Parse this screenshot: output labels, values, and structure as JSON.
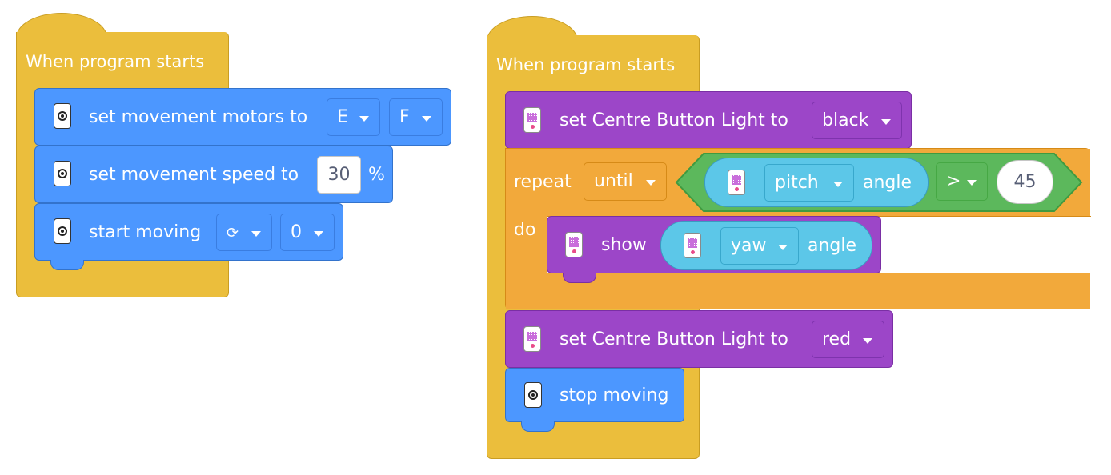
{
  "left_script": {
    "hat_label": "When program starts",
    "set_motors": {
      "label": "set movement motors to",
      "port1": "E",
      "port2": "F"
    },
    "set_speed": {
      "label": "set movement speed to",
      "value": "30",
      "unit": "%"
    },
    "start_moving": {
      "label": "start moving",
      "direction": "⟳",
      "steering": "0"
    }
  },
  "right_script": {
    "hat_label": "When program starts",
    "set_light_1": {
      "label": "set Centre Button Light to",
      "color": "black"
    },
    "repeat": {
      "label": "repeat",
      "mode": "until",
      "do_label": "do",
      "condition": {
        "sensor": "pitch",
        "suffix": "angle",
        "operator": ">",
        "value": "45"
      }
    },
    "show": {
      "label": "show",
      "sensor": "yaw",
      "suffix": "angle"
    },
    "set_light_2": {
      "label": "set Centre Button Light to",
      "color": "red"
    },
    "stop_moving": {
      "label": "stop moving"
    }
  },
  "colors": {
    "events": "#ebbe3c",
    "motors": "#4c97ff",
    "light": "#9c46c8",
    "control": "#f2a93b",
    "operators": "#5cb85c",
    "sensors": "#5cc7e8"
  }
}
